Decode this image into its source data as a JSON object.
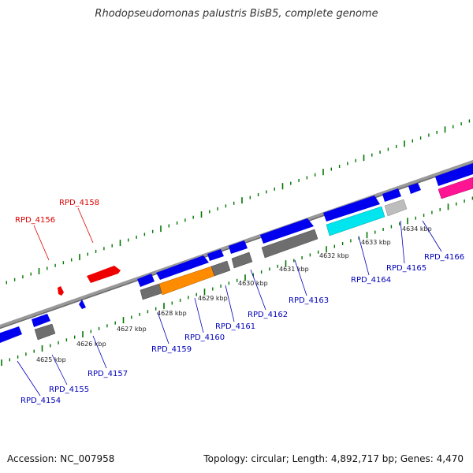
{
  "title": "Rhodopseudomonas palustris BisB5, complete genome",
  "footer": {
    "accession": "Accession: NC_007958",
    "summary": "Topology: circular; Length: 4,892,717 bp; Genes: 4,470"
  },
  "colors": {
    "backbone": "#7a7a7a",
    "forward_gene": "#0000ee",
    "reverse_gene": "#ee0000",
    "grey_feature": "#6e6e6e",
    "light_grey_feature": "#bdbdbd",
    "orange_feature": "#ff8c00",
    "cyan_feature": "#00e5ee",
    "pink_feature": "#ff1493",
    "tick": "#007700",
    "label_forward": "#0000bb",
    "label_reverse": "#dd0000"
  },
  "scale_labels": [
    "4625 kbp",
    "4626 kbp",
    "4627 kbp",
    "4628 kbp",
    "4629 kbp",
    "4630 kbp",
    "4631 kbp",
    "4632 kbp",
    "4633 kbp",
    "4634 kbp"
  ],
  "gene_labels": {
    "reverse": [
      "RPD_4156",
      "RPD_4158"
    ],
    "forward": [
      "RPD_4154",
      "RPD_4155",
      "RPD_4157",
      "RPD_4159",
      "RPD_4160",
      "RPD_4161",
      "RPD_4162",
      "RPD_4163",
      "RPD_4164",
      "RPD_4165",
      "RPD_4166"
    ]
  }
}
